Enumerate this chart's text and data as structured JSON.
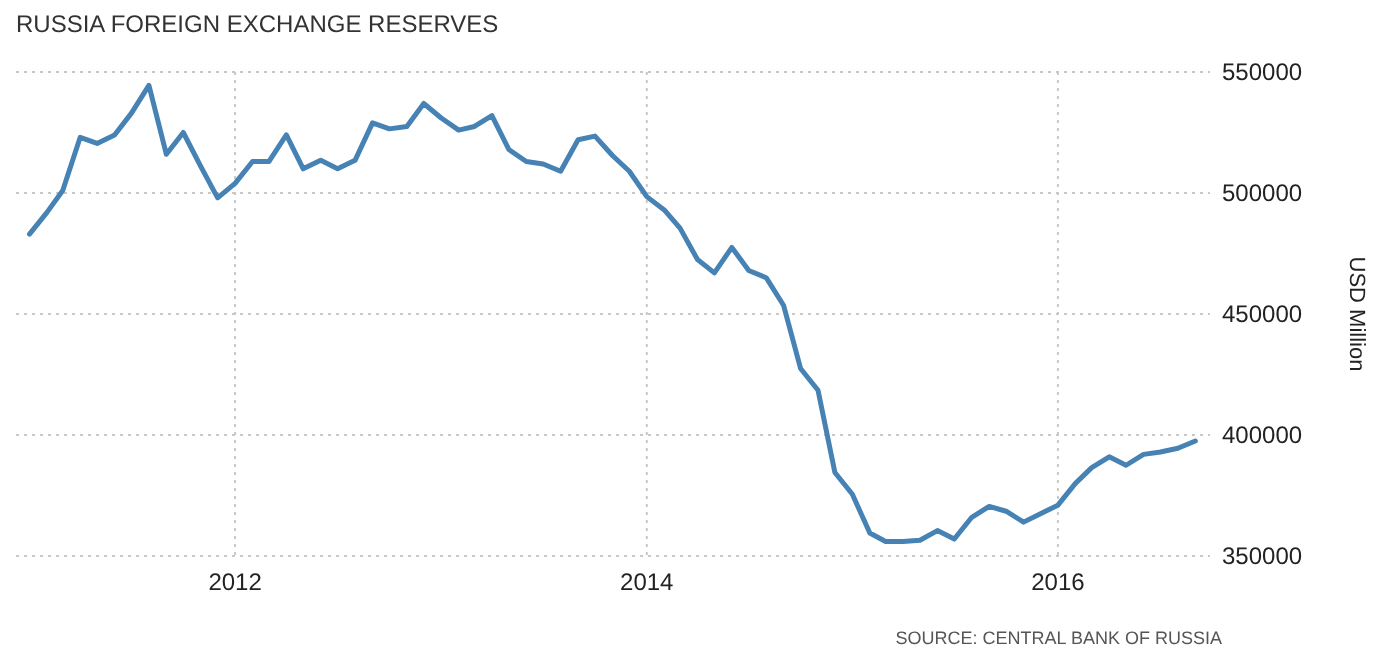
{
  "chart_data": {
    "type": "line",
    "title": "RUSSIA FOREIGN EXCHANGE RESERVES",
    "ylabel": "USD Million",
    "annotations": [
      "SOURCE: CENTRAL BANK OF RUSSIA"
    ],
    "x": [
      "2011-01",
      "2011-02",
      "2011-03",
      "2011-04",
      "2011-05",
      "2011-06",
      "2011-07",
      "2011-08",
      "2011-09",
      "2011-10",
      "2011-11",
      "2011-12",
      "2012-01",
      "2012-02",
      "2012-03",
      "2012-04",
      "2012-05",
      "2012-06",
      "2012-07",
      "2012-08",
      "2012-09",
      "2012-10",
      "2012-11",
      "2012-12",
      "2013-01",
      "2013-02",
      "2013-03",
      "2013-04",
      "2013-05",
      "2013-06",
      "2013-07",
      "2013-08",
      "2013-09",
      "2013-10",
      "2013-11",
      "2013-12",
      "2014-01",
      "2014-02",
      "2014-03",
      "2014-04",
      "2014-05",
      "2014-06",
      "2014-07",
      "2014-08",
      "2014-09",
      "2014-10",
      "2014-11",
      "2014-12",
      "2015-01",
      "2015-02",
      "2015-03",
      "2015-04",
      "2015-05",
      "2015-06",
      "2015-07",
      "2015-08",
      "2015-09",
      "2015-10",
      "2015-11",
      "2015-12",
      "2016-01",
      "2016-02",
      "2016-03",
      "2016-04",
      "2016-05",
      "2016-06",
      "2016-07",
      "2016-08",
      "2016-09"
    ],
    "series": [
      {
        "color": "#4682b4",
        "values": [
          483000,
          492000,
          501000,
          523000,
          520500,
          524000,
          533000,
          544500,
          516000,
          525000,
          511000,
          498000,
          504000,
          513000,
          513000,
          524000,
          510000,
          513500,
          510000,
          513500,
          529000,
          526500,
          527500,
          537000,
          531000,
          526000,
          527500,
          532000,
          518000,
          513000,
          512000,
          509000,
          522000,
          523500,
          515500,
          509000,
          498500,
          493000,
          485500,
          472500,
          467000,
          477500,
          468000,
          465000,
          453500,
          427500,
          418500,
          384500,
          375500,
          359500,
          356000,
          356000,
          356500,
          360500,
          357000,
          366000,
          370500,
          368500,
          364000,
          367500,
          371000,
          380000,
          386500,
          391000,
          387500,
          392000,
          393000,
          394500,
          397500
        ]
      }
    ],
    "xlim": [
      "2010-12-08",
      "2016-09-27"
    ],
    "xticks": [
      {
        "value": "2012",
        "label": "2012"
      },
      {
        "value": "2014",
        "label": "2014"
      },
      {
        "value": "2016",
        "label": "2016"
      }
    ],
    "ylim": [
      350000,
      550000
    ],
    "yticks": [
      350000,
      400000,
      450000,
      500000,
      550000
    ],
    "grid": true,
    "marker": "none",
    "line_style": "solid"
  }
}
